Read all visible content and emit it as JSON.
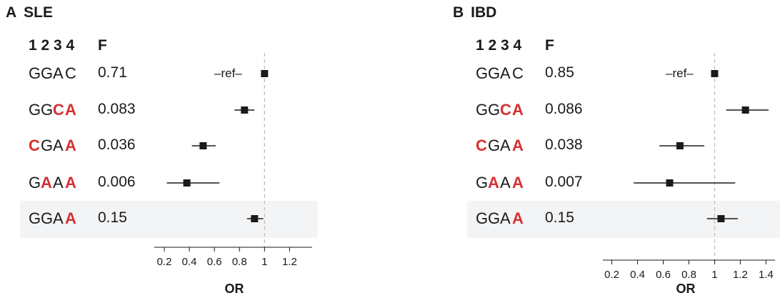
{
  "chart_data": [
    {
      "type": "scatter",
      "panel": "A",
      "title": "SLE",
      "position_header": "1 2 3 4",
      "freq_header": "F",
      "xlabel": "OR",
      "xlim": [
        0.12,
        1.38
      ],
      "xticks": [
        0.2,
        0.4,
        0.6,
        0.8,
        1,
        1.2
      ],
      "xtick_labels": [
        "0.2",
        "0.4",
        "0.6",
        "0.8",
        "1",
        "1.2"
      ],
      "reference_line": 1,
      "ref_label": "–ref–",
      "rows": [
        {
          "haplotype": [
            "G",
            "G",
            "A",
            "C"
          ],
          "alt": [
            false,
            false,
            false,
            false
          ],
          "freq": "0.71",
          "or": 1.0,
          "ci": null,
          "is_ref": true,
          "highlight": false
        },
        {
          "haplotype": [
            "G",
            "G",
            "C",
            "A"
          ],
          "alt": [
            false,
            false,
            true,
            true
          ],
          "freq": "0.083",
          "or": 0.84,
          "ci": [
            0.76,
            0.92
          ],
          "is_ref": false,
          "highlight": false
        },
        {
          "haplotype": [
            "C",
            "G",
            "A",
            "A"
          ],
          "alt": [
            true,
            false,
            false,
            true
          ],
          "freq": "0.036",
          "or": 0.51,
          "ci": [
            0.42,
            0.61
          ],
          "is_ref": false,
          "highlight": false
        },
        {
          "haplotype": [
            "G",
            "A",
            "A",
            "A"
          ],
          "alt": [
            false,
            true,
            false,
            true
          ],
          "freq": "0.006",
          "or": 0.38,
          "ci": [
            0.22,
            0.64
          ],
          "is_ref": false,
          "highlight": false
        },
        {
          "haplotype": [
            "G",
            "G",
            "A",
            "A"
          ],
          "alt": [
            false,
            false,
            false,
            true
          ],
          "freq": "0.15",
          "or": 0.92,
          "ci": [
            0.86,
            0.99
          ],
          "is_ref": false,
          "highlight": true
        }
      ]
    },
    {
      "type": "scatter",
      "panel": "B",
      "title": "IBD",
      "position_header": "1 2 3 4",
      "freq_header": "F",
      "xlabel": "OR",
      "xlim": [
        0.13,
        1.47
      ],
      "xticks": [
        0.2,
        0.4,
        0.6,
        0.8,
        1,
        1.2,
        1.4
      ],
      "xtick_labels": [
        "0.2",
        "0.4",
        "0.6",
        "0.8",
        "1",
        "1.2",
        "1.4"
      ],
      "reference_line": 1,
      "ref_label": "–ref–",
      "rows": [
        {
          "haplotype": [
            "G",
            "G",
            "A",
            "C"
          ],
          "alt": [
            false,
            false,
            false,
            false
          ],
          "freq": "0.85",
          "or": 1.0,
          "ci": null,
          "is_ref": true,
          "highlight": false
        },
        {
          "haplotype": [
            "G",
            "G",
            "C",
            "A"
          ],
          "alt": [
            false,
            false,
            true,
            true
          ],
          "freq": "0.086",
          "or": 1.24,
          "ci": [
            1.09,
            1.42
          ],
          "is_ref": false,
          "highlight": false
        },
        {
          "haplotype": [
            "C",
            "G",
            "A",
            "A"
          ],
          "alt": [
            true,
            false,
            false,
            true
          ],
          "freq": "0.038",
          "or": 0.73,
          "ci": [
            0.57,
            0.92
          ],
          "is_ref": false,
          "highlight": false
        },
        {
          "haplotype": [
            "G",
            "A",
            "A",
            "A"
          ],
          "alt": [
            false,
            true,
            false,
            true
          ],
          "freq": "0.007",
          "or": 0.65,
          "ci": [
            0.37,
            1.16
          ],
          "is_ref": false,
          "highlight": false
        },
        {
          "haplotype": [
            "G",
            "G",
            "A",
            "A"
          ],
          "alt": [
            false,
            false,
            false,
            true
          ],
          "freq": "0.15",
          "or": 1.05,
          "ci": [
            0.94,
            1.18
          ],
          "is_ref": false,
          "highlight": true
        }
      ]
    }
  ],
  "colors": {
    "alt_allele": "#d62f2f",
    "marker": "#1a1a1a",
    "highlight_bg": "#f3f4f6",
    "ref_line": "#bdbdbd"
  }
}
